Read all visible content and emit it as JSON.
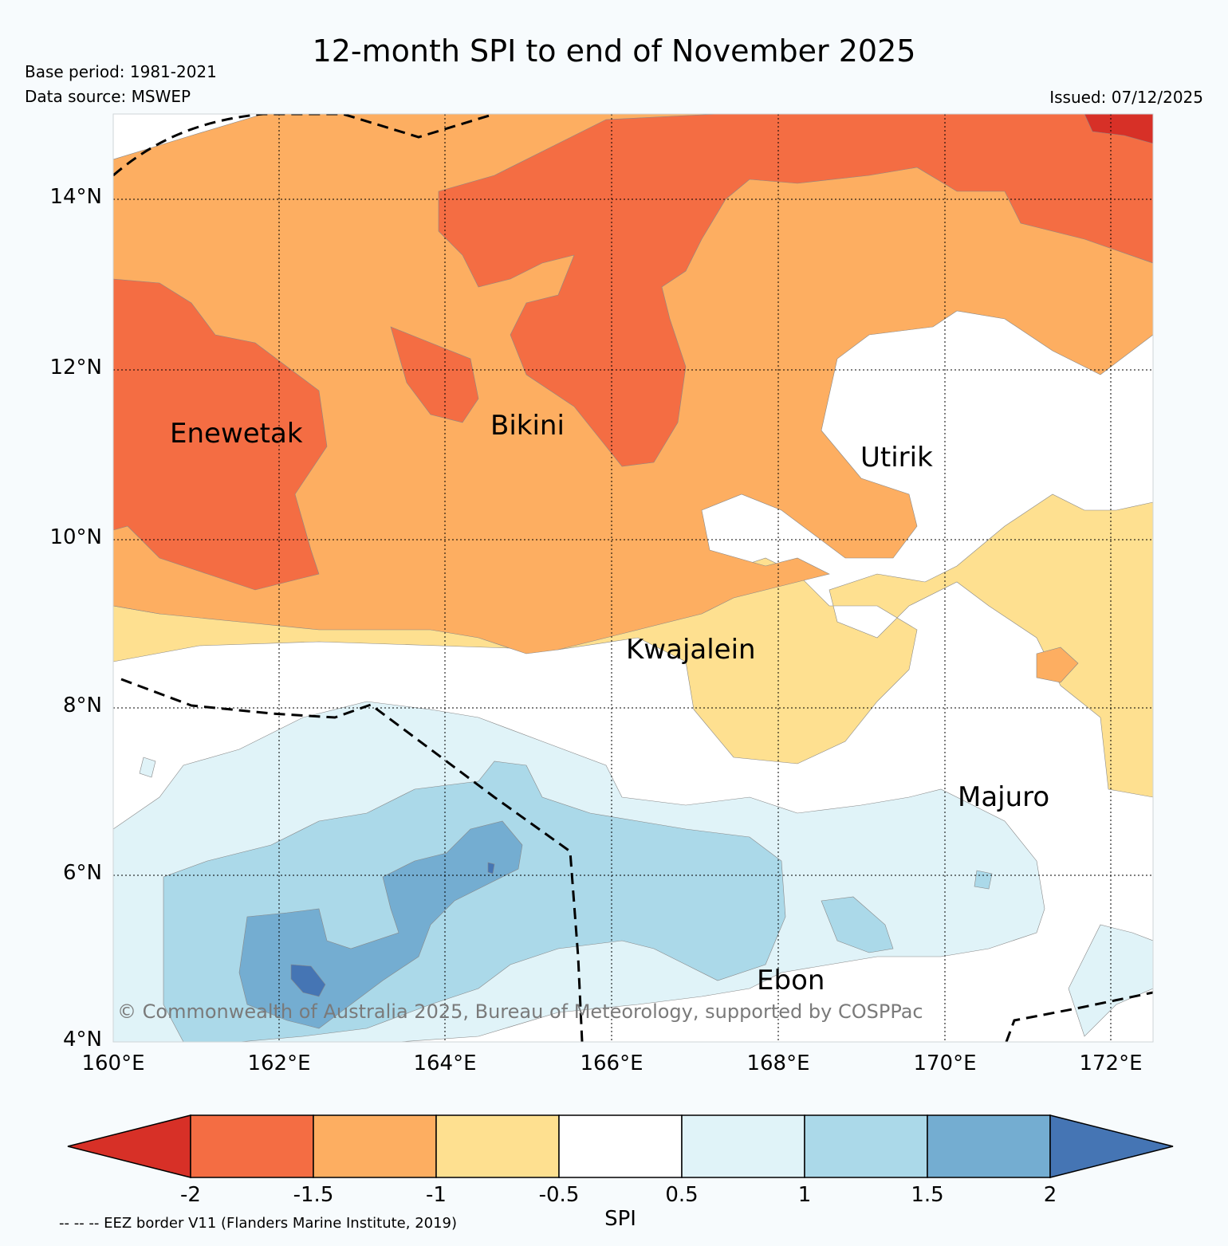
{
  "header": {
    "title": "12-month SPI to end of November 2025",
    "base_period": "Base period: 1981-2021",
    "data_source": "Data source: MSWEP",
    "issued": "Issued: 07/12/2025"
  },
  "map": {
    "lat_labels": [
      "14°N",
      "12°N",
      "10°N",
      "8°N",
      "6°N",
      "4°N"
    ],
    "lon_labels": [
      "160°E",
      "162°E",
      "164°E",
      "166°E",
      "168°E",
      "170°E",
      "172°E"
    ],
    "places": [
      "Enewetak",
      "Bikini",
      "Utirik",
      "Kwajalein",
      "Majuro",
      "Ebon"
    ],
    "copyright": "© Commonwealth of Australia 2025, Bureau of Meteorology, supported by COSPPac"
  },
  "colorbar": {
    "label": "SPI",
    "ticks": [
      "-2",
      "-1.5",
      "-1",
      "-0.5",
      "0.5",
      "1",
      "1.5",
      "2"
    ],
    "colors": [
      "#d73027",
      "#f46d43",
      "#fdae61",
      "#fee090",
      "#ffffff",
      "#e0f3f8",
      "#abd9e9",
      "#74add1",
      "#4575b4"
    ]
  },
  "legend": {
    "eez_note": "-- -- -- EEZ border V11 (Flanders Marine Institute, 2019)"
  }
}
